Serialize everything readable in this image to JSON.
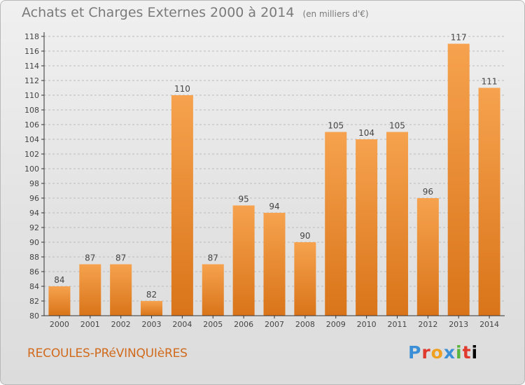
{
  "title": "Achats et Charges Externes 2000 à 2014",
  "unit": "(en milliers d'€)",
  "commune": "RECOULES-PRéVINQUIèRES",
  "logo": [
    "P",
    "r",
    "o",
    "x",
    "i",
    "t",
    "i"
  ],
  "colors": {
    "bar_light": "#f6a24e",
    "bar_dark": "#d97419",
    "axis": "#333333",
    "grid": "#bbbbbb",
    "label": "#444444"
  },
  "chart_data": {
    "type": "bar",
    "title": "Achats et Charges Externes 2000 à 2014",
    "subtitle": "(en milliers d'€)",
    "categories": [
      "2000",
      "2001",
      "2002",
      "2003",
      "2004",
      "2005",
      "2006",
      "2007",
      "2008",
      "2009",
      "2010",
      "2011",
      "2012",
      "2013",
      "2014"
    ],
    "values": [
      84,
      87,
      87,
      82,
      110,
      87,
      95,
      94,
      90,
      105,
      104,
      105,
      96,
      117,
      111
    ],
    "ylim": [
      80,
      118
    ],
    "yticks": [
      80,
      82,
      84,
      86,
      88,
      90,
      92,
      94,
      96,
      98,
      100,
      102,
      104,
      106,
      108,
      110,
      112,
      114,
      116,
      118
    ],
    "grid": true,
    "xlabel": "",
    "ylabel": ""
  }
}
